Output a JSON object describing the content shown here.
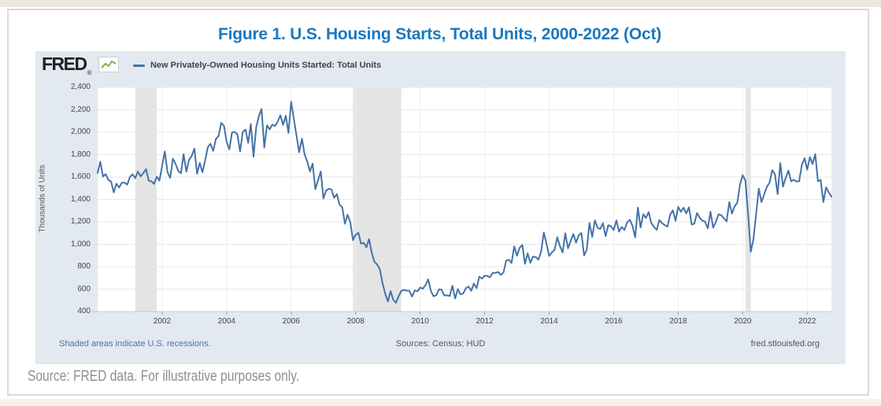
{
  "page": {
    "title": "Figure 1. U.S. Housing Starts, Total Units, 2000-2022 (Oct)",
    "caption": "Source: FRED data. For illustrative purposes only."
  },
  "fred": {
    "logo_text": "FRED",
    "logo_reg": "®",
    "legend_label": "New Privately-Owned Housing Units Started: Total Units",
    "ylabel": "Thousands of Units",
    "footer_left": "Shaded areas indicate U.S. recessions.",
    "footer_center": "Sources: Census; HUD",
    "footer_right": "fred.stlouisfed.org"
  },
  "chart_data": {
    "type": "line",
    "title": "New Privately-Owned Housing Units Started: Total Units",
    "ylabel": "Thousands of Units",
    "ylim": [
      400,
      2400
    ],
    "yticks": [
      400,
      600,
      800,
      1000,
      1200,
      1400,
      1600,
      1800,
      2000,
      2200,
      2400
    ],
    "xticks": [
      2002,
      2004,
      2006,
      2008,
      2010,
      2012,
      2014,
      2016,
      2018,
      2020,
      2022
    ],
    "x_start": "2000-01",
    "x_end": "2022-10",
    "frequency": "monthly",
    "grid": true,
    "legend_position": "top",
    "colors": {
      "line": "#4572a7",
      "recession_band": "#e4e4e4",
      "grid_h": "#e7e7e7",
      "grid_v": "#efefef",
      "axis": "#c8c8c8",
      "plot_bg": "#ffffff",
      "card_bg": "#e2e9f0",
      "title_blue": "#1b78bd"
    },
    "recessions_note": "Shaded areas indicate U.S. recessions.",
    "recessions_month_index": [
      [
        14,
        22
      ],
      [
        95,
        113
      ],
      [
        241,
        243
      ]
    ],
    "series": [
      {
        "name": "New Privately-Owned Housing Units Started: Total Units",
        "units": "Thousands of Units",
        "values": [
          1636,
          1737,
          1604,
          1626,
          1575,
          1559,
          1463,
          1541,
          1507,
          1549,
          1551,
          1532,
          1600,
          1625,
          1590,
          1649,
          1605,
          1636,
          1670,
          1567,
          1562,
          1540,
          1602,
          1568,
          1698,
          1829,
          1642,
          1592,
          1764,
          1717,
          1655,
          1633,
          1804,
          1648,
          1753,
          1788,
          1853,
          1629,
          1726,
          1643,
          1751,
          1867,
          1897,
          1833,
          1939,
          1967,
          2083,
          2057,
          1911,
          1846,
          1998,
          2003,
          1981,
          1828,
          2002,
          2024,
          1905,
          2072,
          1782,
          2042,
          2144,
          2207,
          1864,
          2061,
          2025,
          2068,
          2054,
          2095,
          2151,
          2065,
          2147,
          1994,
          2273,
          2119,
          1969,
          1821,
          1942,
          1802,
          1737,
          1650,
          1720,
          1491,
          1570,
          1649,
          1409,
          1480,
          1495,
          1490,
          1415,
          1448,
          1354,
          1330,
          1183,
          1264,
          1197,
          1037,
          1084,
          1103,
          1005,
          1013,
          973,
          1046,
          923,
          844,
          820,
          777,
          652,
          560,
          490,
          582,
          505,
          478,
          540,
          585,
          594,
          586,
          585,
          534,
          588,
          581,
          614,
          604,
          636,
          687,
          583,
          536,
          546,
          599,
          594,
          543,
          545,
          539,
          630,
          517,
          600,
          554,
          561,
          608,
          623,
          585,
          650,
          610,
          711,
          694,
          720,
          718,
          706,
          747,
          744,
          754,
          728,
          749,
          854,
          863,
          834,
          982,
          898,
          969,
          994,
          826,
          919,
          835,
          891,
          885,
          863,
          936,
          1105,
          1007,
          897,
          928,
          950,
          1063,
          984,
          927,
          1098,
          964,
          1028,
          1092,
          1015,
          1081,
          1101,
          900,
          954,
          1190,
          1067,
          1213,
          1147,
          1137,
          1189,
          1073,
          1171,
          1160,
          1128,
          1213,
          1113,
          1155,
          1128,
          1195,
          1218,
          1164,
          1062,
          1328,
          1149,
          1268,
          1236,
          1288,
          1189,
          1154,
          1129,
          1217,
          1188,
          1172,
          1158,
          1265,
          1303,
          1210,
          1334,
          1290,
          1327,
          1276,
          1329,
          1177,
          1184,
          1279,
          1237,
          1211,
          1202,
          1142,
          1291,
          1149,
          1199,
          1267,
          1260,
          1232,
          1204,
          1377,
          1274,
          1340,
          1371,
          1532,
          1617,
          1567,
          1269,
          934,
          1046,
          1273,
          1497,
          1376,
          1448,
          1514,
          1551,
          1661,
          1625,
          1447,
          1725,
          1514,
          1594,
          1657,
          1562,
          1576,
          1559,
          1563,
          1706,
          1768,
          1666,
          1777,
          1716,
          1805,
          1562,
          1575,
          1377,
          1508,
          1463,
          1425
        ]
      }
    ]
  }
}
